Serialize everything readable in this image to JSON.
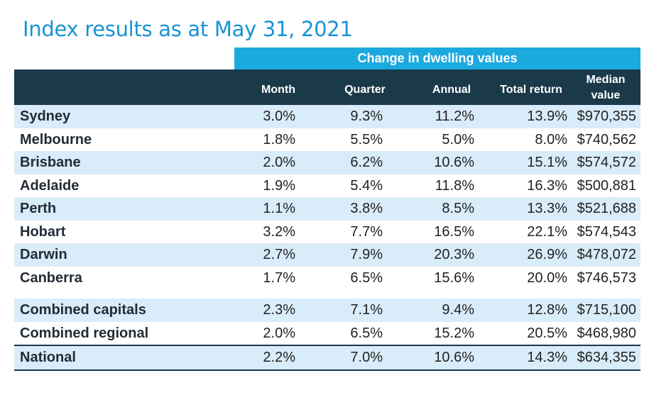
{
  "title": "Index results as at May 31, 2021",
  "band_label": "Change in dwelling values",
  "columns": {
    "month": "Month",
    "quarter": "Quarter",
    "annual": "Annual",
    "total_return": "Total return",
    "median_value_1": "Median",
    "median_value_2": "value"
  },
  "rows": [
    {
      "name": "Sydney",
      "month": "3.0%",
      "quarter": "9.3%",
      "annual": "11.2%",
      "total_return": "13.9%",
      "median": "$970,355"
    },
    {
      "name": "Melbourne",
      "month": "1.8%",
      "quarter": "5.5%",
      "annual": "5.0%",
      "total_return": "8.0%",
      "median": "$740,562"
    },
    {
      "name": "Brisbane",
      "month": "2.0%",
      "quarter": "6.2%",
      "annual": "10.6%",
      "total_return": "15.1%",
      "median": "$574,572"
    },
    {
      "name": "Adelaide",
      "month": "1.9%",
      "quarter": "5.4%",
      "annual": "11.8%",
      "total_return": "16.3%",
      "median": "$500,881"
    },
    {
      "name": "Perth",
      "month": "1.1%",
      "quarter": "3.8%",
      "annual": "8.5%",
      "total_return": "13.3%",
      "median": "$521,688"
    },
    {
      "name": "Hobart",
      "month": "3.2%",
      "quarter": "7.7%",
      "annual": "16.5%",
      "total_return": "22.1%",
      "median": "$574,543"
    },
    {
      "name": "Darwin",
      "month": "2.7%",
      "quarter": "7.9%",
      "annual": "20.3%",
      "total_return": "26.9%",
      "median": "$478,072"
    },
    {
      "name": "Canberra",
      "month": "1.7%",
      "quarter": "6.5%",
      "annual": "15.6%",
      "total_return": "20.0%",
      "median": "$746,573"
    }
  ],
  "summary_rows": [
    {
      "name": "Combined capitals",
      "month": "2.3%",
      "quarter": "7.1%",
      "annual": "9.4%",
      "total_return": "12.8%",
      "median": "$715,100"
    },
    {
      "name": "Combined regional",
      "month": "2.0%",
      "quarter": "6.5%",
      "annual": "15.2%",
      "total_return": "20.5%",
      "median": "$468,980"
    }
  ],
  "national": {
    "name": "National",
    "month": "2.2%",
    "quarter": "7.0%",
    "annual": "10.6%",
    "total_return": "14.3%",
    "median": "$634,355"
  },
  "colors": {
    "title": "#1a93d3",
    "band": "#1ca9de",
    "header": "#1a3a4a",
    "row_shade": "#d9ecf9"
  }
}
